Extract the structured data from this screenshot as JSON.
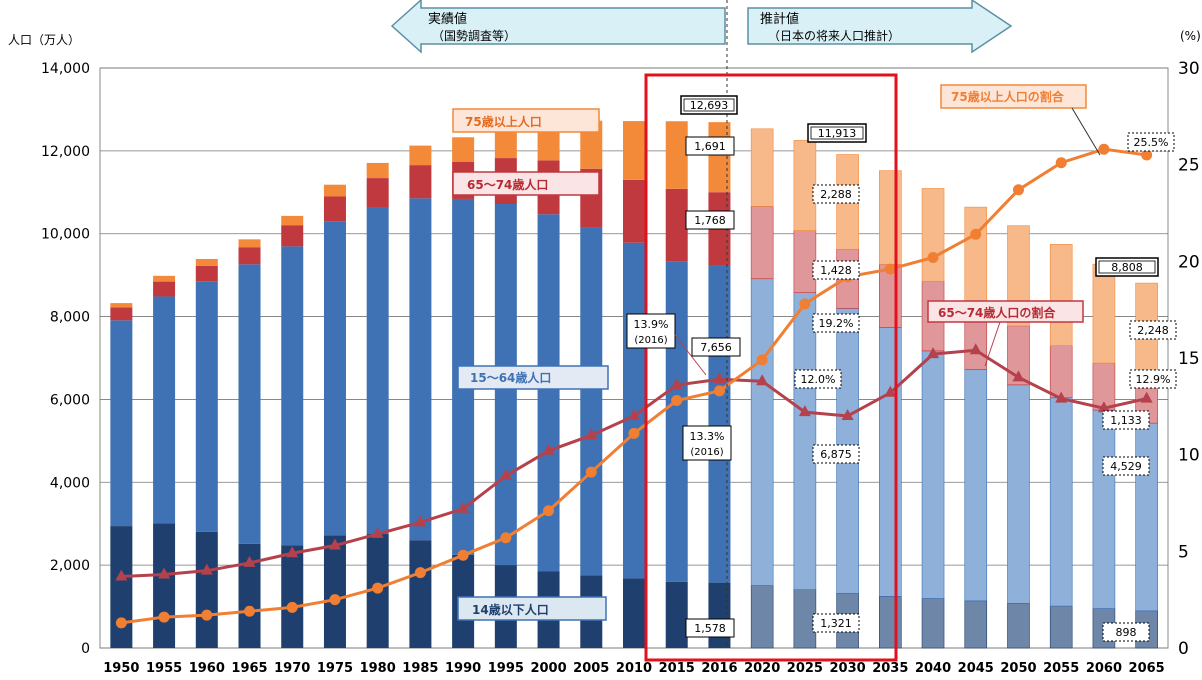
{
  "chart_data": {
    "type": "bar",
    "left_axis_title": "人口（万人）",
    "right_axis_title": "(%)",
    "left_ticks": [
      "0",
      "2,000",
      "4,000",
      "6,000",
      "8,000",
      "10,000",
      "12,000",
      "14,000"
    ],
    "right_ticks": [
      "0",
      "5",
      "10",
      "15",
      "20",
      "25",
      "30"
    ],
    "ylim_left": [
      0,
      14000
    ],
    "ylim_right": [
      0,
      30
    ],
    "categories": [
      "1950",
      "1955",
      "1960",
      "1965",
      "1970",
      "1975",
      "1980",
      "1985",
      "1990",
      "1995",
      "2000",
      "2005",
      "2010",
      "2015",
      "2016",
      "2020",
      "2025",
      "2030",
      "2035",
      "2040",
      "2045",
      "2050",
      "2055",
      "2060",
      "2065"
    ],
    "projection_start_index": 15,
    "series": [
      {
        "name": "14歳以下人口",
        "color": "#1f3f6e",
        "color_projected": "#6e87a8",
        "values": [
          2943,
          3012,
          2807,
          2517,
          2482,
          2722,
          2751,
          2603,
          2249,
          2001,
          1847,
          1752,
          1680,
          1595,
          1578,
          1507,
          1407,
          1321,
          1246,
          1194,
          1138,
          1077,
          1012,
          951,
          898
        ]
      },
      {
        "name": "15〜64歳人口",
        "color": "#3e72b4",
        "color_projected": "#8eb0d9",
        "values": [
          4966,
          5473,
          6047,
          6744,
          7212,
          7581,
          7883,
          8251,
          8590,
          8716,
          8622,
          8409,
          8103,
          7728,
          7656,
          7406,
          7170,
          6875,
          6494,
          5978,
          5584,
          5275,
          5028,
          4793,
          4529
        ]
      },
      {
        "name": "65〜74歳人口",
        "color": "#c0393f",
        "color_projected": "#e0979a",
        "values": [
          309,
          359,
          373,
          414,
          512,
          596,
          709,
          802,
          892,
          1109,
          1301,
          1407,
          1517,
          1760,
          1768,
          1747,
          1497,
          1428,
          1522,
          1681,
          1643,
          1424,
          1258,
          1133,
          1133
        ]
      },
      {
        "name": "75歳以上人口",
        "color": "#f28a3a",
        "color_projected": "#f7b98a",
        "values": [
          107,
          139,
          163,
          189,
          224,
          284,
          366,
          471,
          597,
          717,
          901,
          1160,
          1419,
          1632,
          1691,
          1872,
          2180,
          2288,
          2260,
          2239,
          2277,
          2417,
          2446,
          2387,
          2248
        ]
      }
    ],
    "ratio_series": [
      {
        "name": "65〜74歳人口の割合",
        "color": "#b5414c",
        "marker": "triangle",
        "values": [
          3.7,
          3.8,
          4.0,
          4.4,
          4.9,
          5.3,
          5.9,
          6.5,
          7.2,
          8.9,
          10.2,
          11.0,
          12.0,
          13.6,
          13.9,
          13.8,
          12.2,
          12.0,
          13.2,
          15.2,
          15.4,
          14.0,
          12.9,
          12.4,
          12.9
        ]
      },
      {
        "name": "75歳以上人口の割合",
        "color": "#f07f33",
        "marker": "circle",
        "values": [
          1.3,
          1.6,
          1.7,
          1.9,
          2.1,
          2.5,
          3.1,
          3.9,
          4.8,
          5.7,
          7.1,
          9.1,
          11.1,
          12.8,
          13.3,
          14.9,
          17.8,
          19.2,
          19.6,
          20.2,
          21.4,
          23.7,
          25.1,
          25.8,
          25.5
        ]
      }
    ],
    "header_arrows": [
      {
        "title": "実績値",
        "subtitle": "（国勢調査等）"
      },
      {
        "title": "推計値",
        "subtitle": "（日本の将来人口推計）"
      }
    ],
    "series_labels": {
      "age75": "75歳以上人口",
      "age65": "65〜74歳人口",
      "age15": "15〜64歳人口",
      "age0": "14歳以下人口",
      "ratio75": "75歳以上人口の割合",
      "ratio65": "65〜74歳人口の割合"
    },
    "callouts": {
      "total_2016": "12,693",
      "v75_2016": "1,691",
      "v65_2016": "1,768",
      "v15_2016": "7,656",
      "v0_2016": "1,578",
      "total_2030": "11,913",
      "v75_2030": "2,288",
      "v65_2030": "1,428",
      "r75_2030": "19.2%",
      "r65_2030": "12.0%",
      "v15_2030": "6,875",
      "v0_2030": "1,321",
      "total_2065": "8,808",
      "v75_2065": "2,248",
      "v65_2065": "1,133",
      "v15_2065": "4,529",
      "v0_2065": "898",
      "r75_2065": "25.5%",
      "r65_2065": "12.9%",
      "r65_2016": "13.9%",
      "r65_2016_sub": "(2016)",
      "r75_2016": "13.3%",
      "r75_2016_sub": "(2016)"
    }
  }
}
